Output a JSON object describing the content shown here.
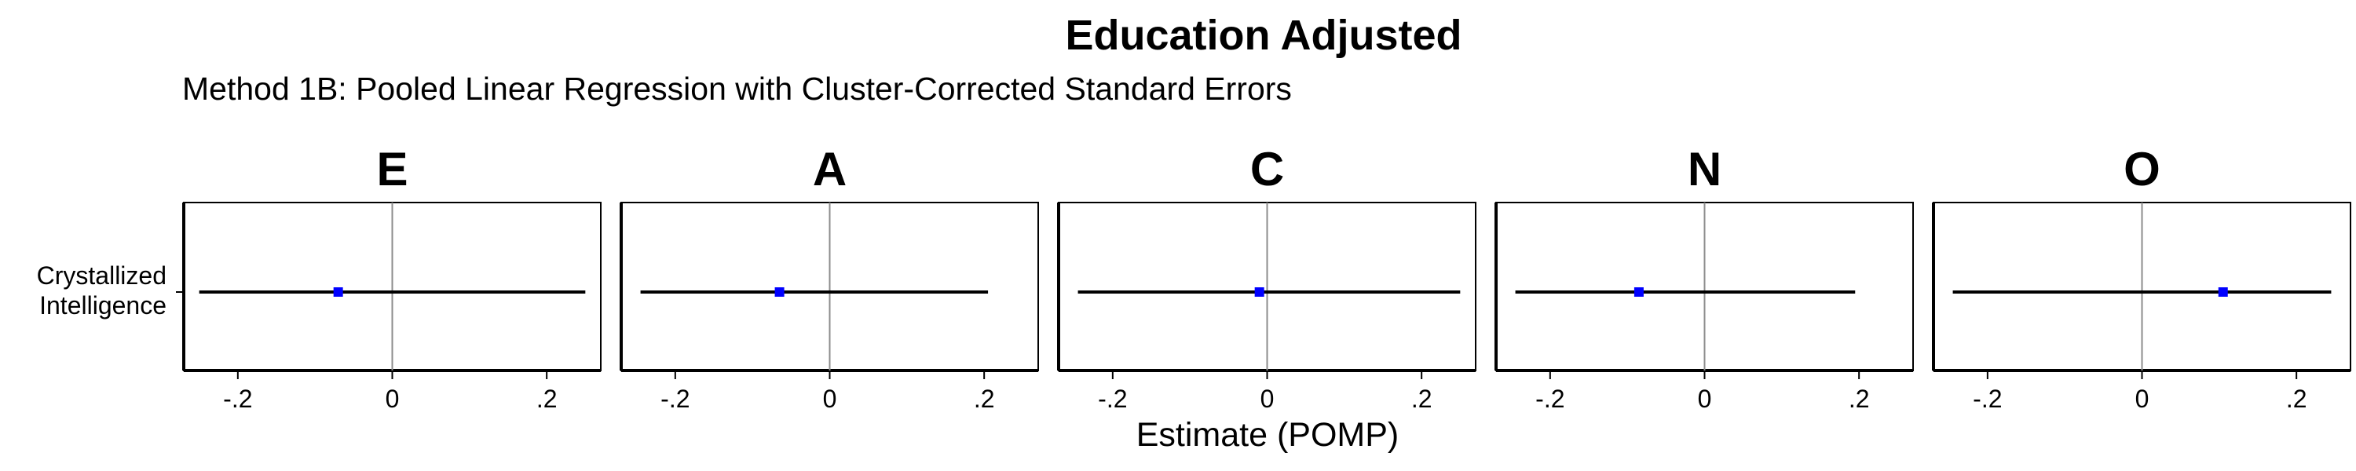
{
  "title": "Education Adjusted",
  "subtitle": "Method 1B: Pooled Linear Regression with Cluster-Corrected Standard Errors",
  "chart_data": {
    "type": "scatter",
    "title": "Education Adjusted",
    "subtitle": "Method 1B: Pooled Linear Regression with Cluster-Corrected Standard Errors",
    "xlabel": "Estimate (POMP)",
    "ylabel": "",
    "xlim": [
      -0.27,
      0.27
    ],
    "x_ticks": [
      -0.2,
      0,
      0.2
    ],
    "x_tick_labels": [
      "-.2",
      "0",
      ".2"
    ],
    "reference_line": 0,
    "category": "Crystallized Intelligence",
    "category_lines": [
      "Crystallized",
      "Intelligence"
    ],
    "colors": {
      "point": "#0000ff",
      "interval": "#000000",
      "reference": "#8c8c8c"
    },
    "panels": [
      {
        "name": "E",
        "estimate": -0.07,
        "ci": [
          -0.25,
          0.25
        ]
      },
      {
        "name": "A",
        "estimate": -0.065,
        "ci": [
          -0.245,
          0.205
        ]
      },
      {
        "name": "C",
        "estimate": -0.01,
        "ci": [
          -0.245,
          0.25
        ]
      },
      {
        "name": "N",
        "estimate": -0.085,
        "ci": [
          -0.245,
          0.195
        ]
      },
      {
        "name": "O",
        "estimate": 0.105,
        "ci": [
          -0.245,
          0.245
        ]
      }
    ]
  }
}
